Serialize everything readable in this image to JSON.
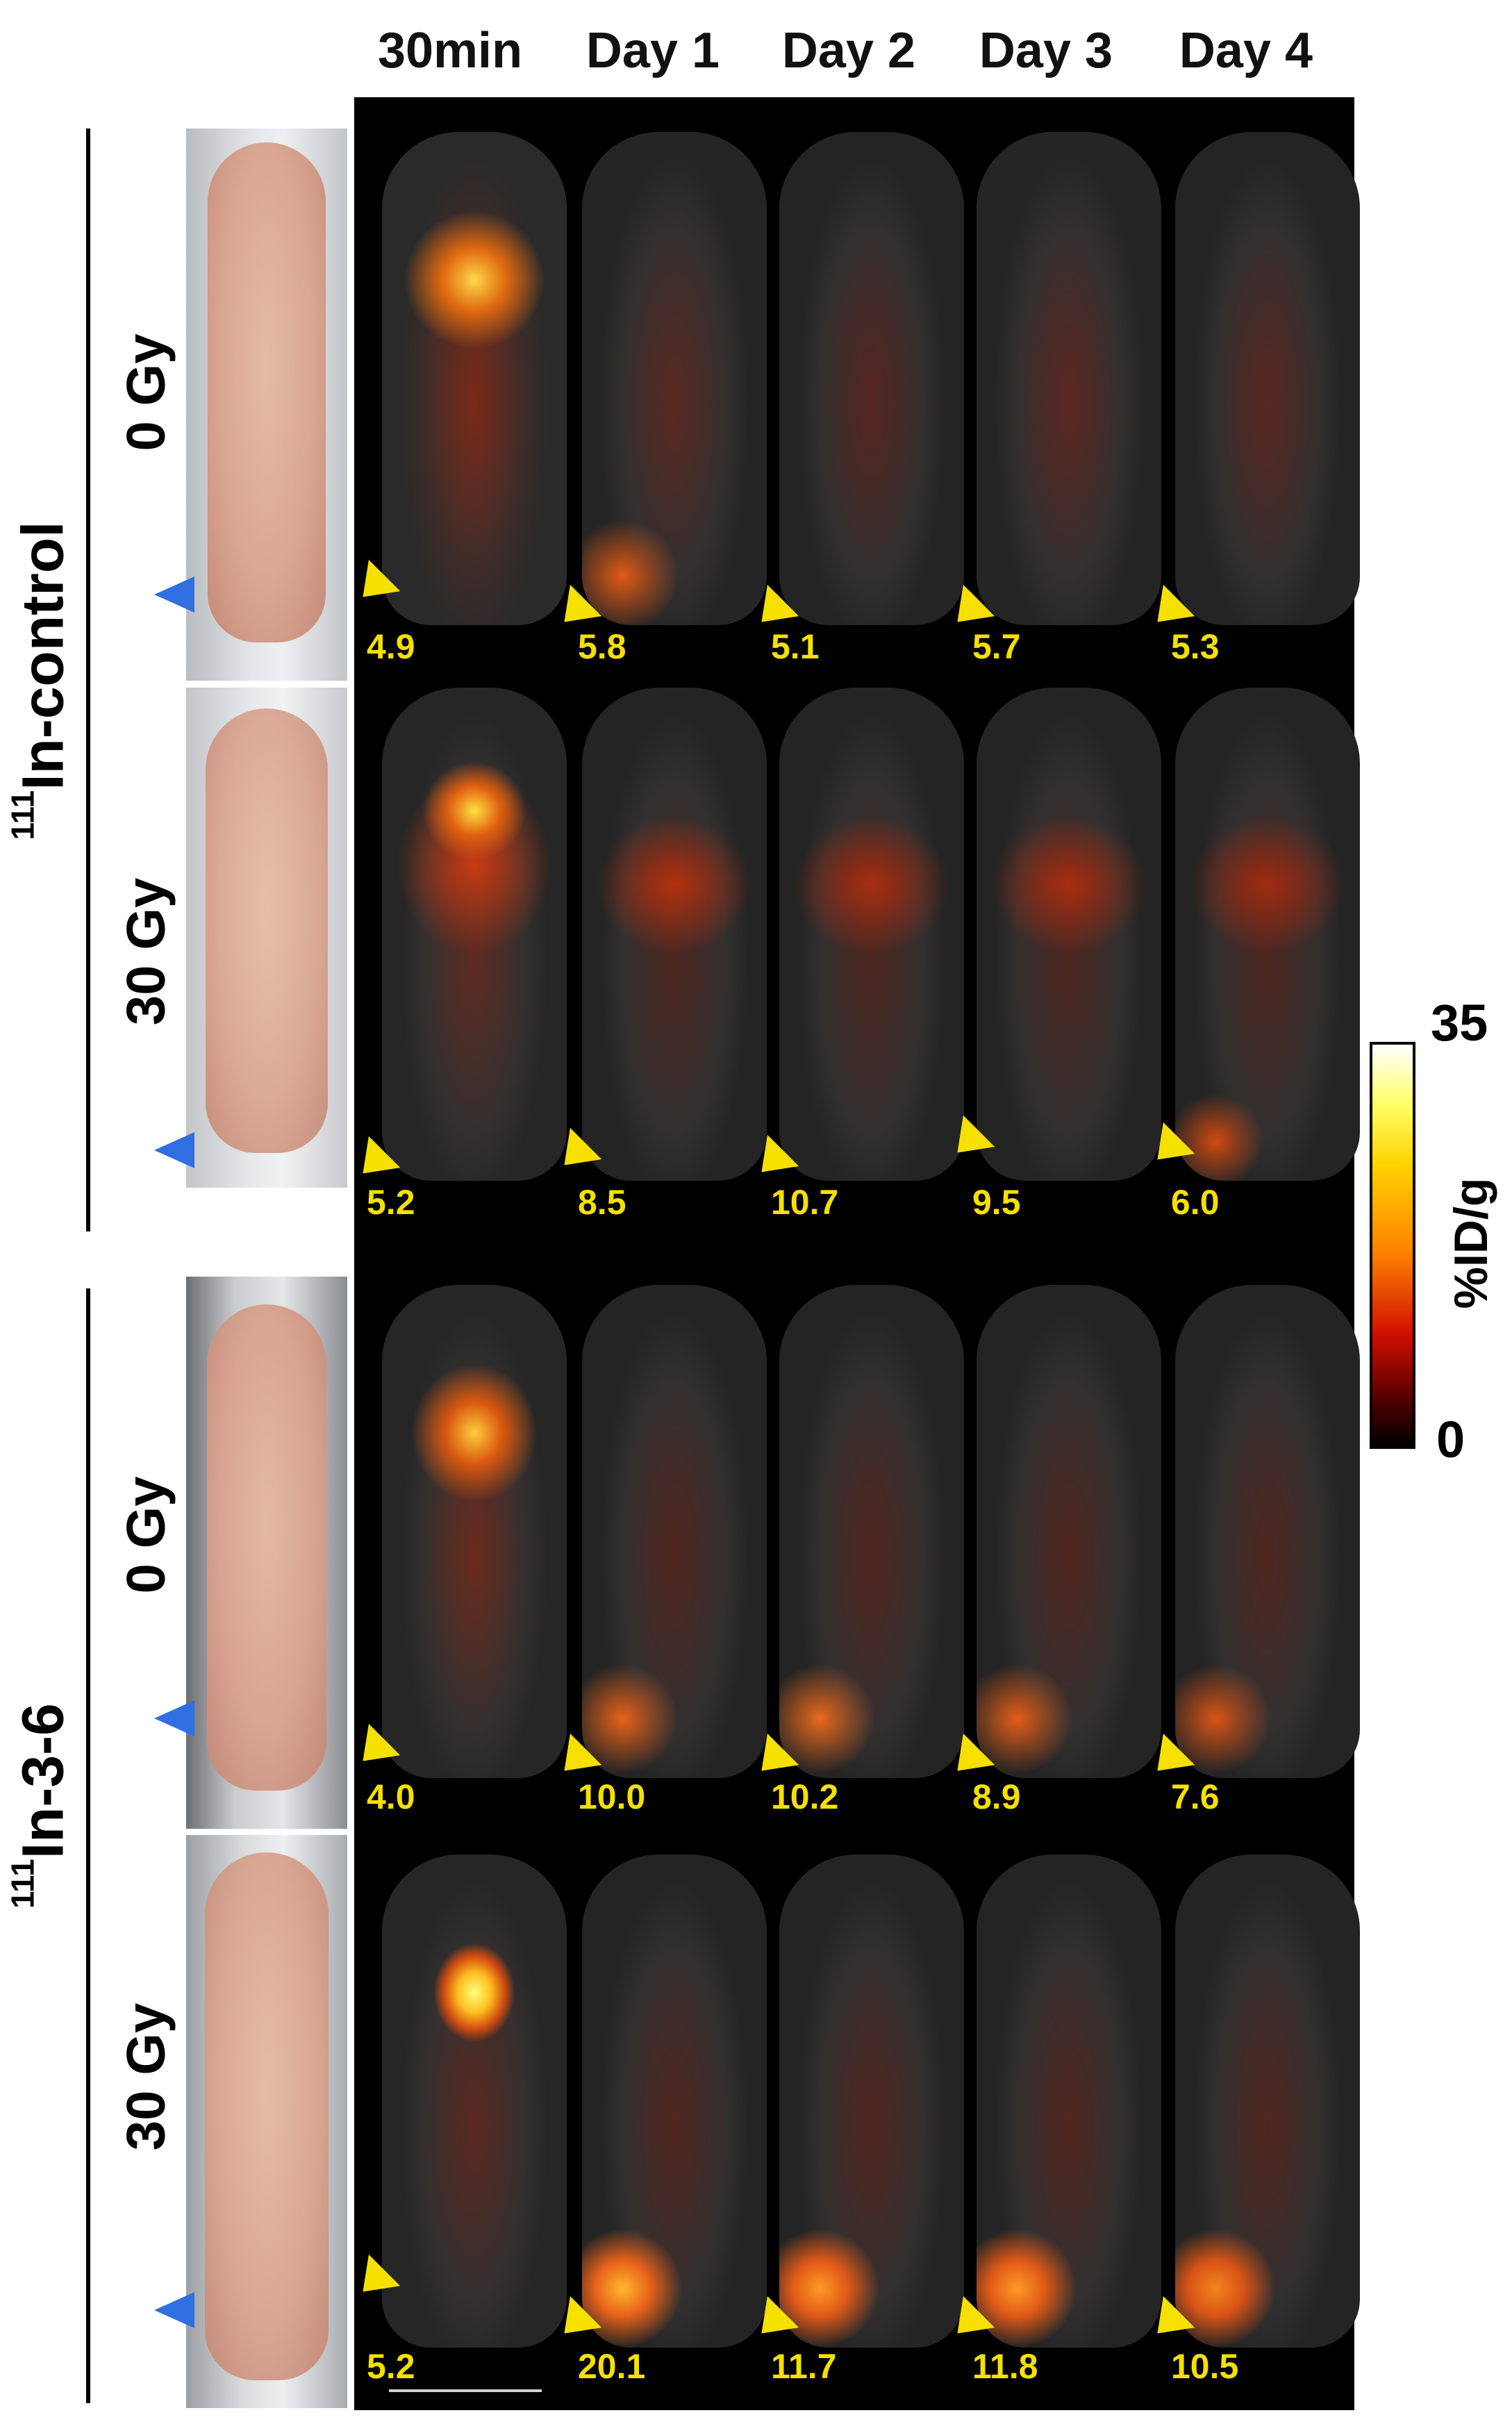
{
  "columns": [
    "30min",
    "Day 1",
    "Day 2",
    "Day 3",
    "Day 4"
  ],
  "groups": [
    {
      "sup": "111",
      "name": "In-control"
    },
    {
      "sup": "111",
      "name": "In-3-6"
    }
  ],
  "doses": [
    "0 Gy",
    "30 Gy",
    "0 Gy",
    "30 Gy"
  ],
  "values": [
    [
      "4.9",
      "5.8",
      "5.1",
      "5.7",
      "5.3"
    ],
    [
      "5.2",
      "8.5",
      "10.7",
      "9.5",
      "6.0"
    ],
    [
      "4.0",
      "10.0",
      "10.2",
      "8.9",
      "7.6"
    ],
    [
      "5.2",
      "20.1",
      "11.7",
      "11.8",
      "10.5"
    ]
  ],
  "colorbar": {
    "max": "35",
    "min": "0",
    "unit": "%ID/g"
  },
  "colors": {
    "tumor_arrow": "#f5e000",
    "photo_arrow": "#2f6fe0"
  }
}
